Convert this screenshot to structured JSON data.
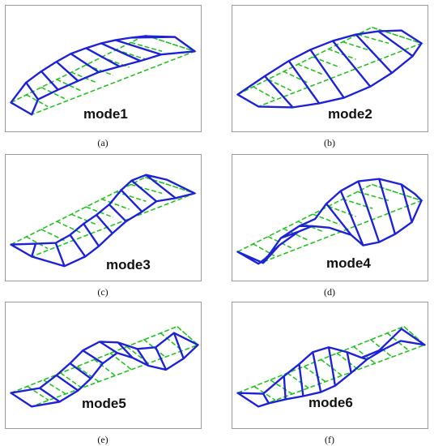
{
  "panels": [
    {
      "mode_label": "mode1",
      "caption": "(a)"
    },
    {
      "mode_label": "mode2",
      "caption": "(b)"
    },
    {
      "mode_label": "mode3",
      "caption": "(c)"
    },
    {
      "mode_label": "mode4",
      "caption": "(d)"
    },
    {
      "mode_label": "mode5",
      "caption": "(e)"
    },
    {
      "mode_label": "mode6",
      "caption": "(f)"
    }
  ],
  "colors": {
    "undeformed": "#22c31c",
    "deformed": "#1d22d6",
    "border": "#9a9a9a"
  }
}
